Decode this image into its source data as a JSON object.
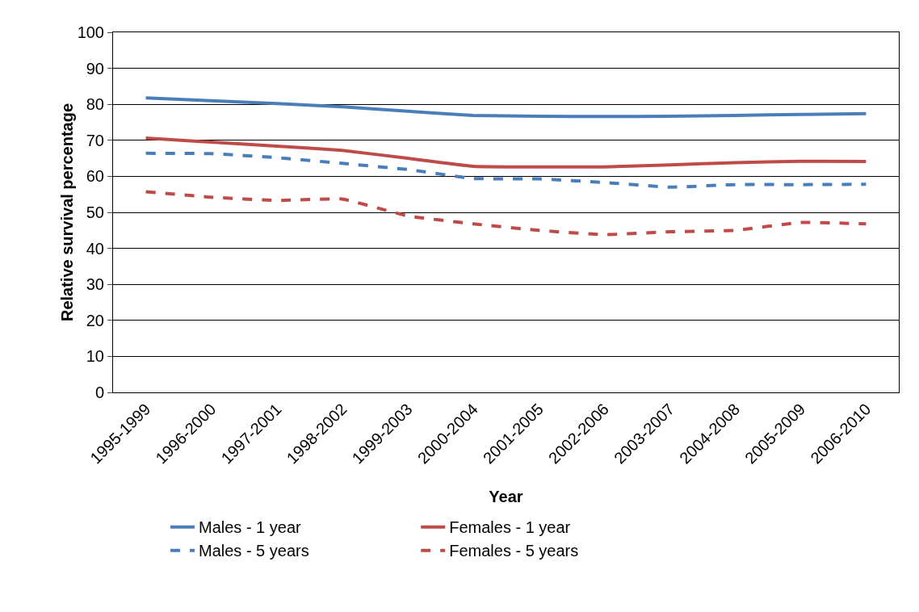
{
  "chart_data": {
    "type": "line",
    "xlabel": "Year",
    "ylabel": "Relative survival percentage",
    "categories": [
      "1995-1999",
      "1996-2000",
      "1997-2001",
      "1998-2002",
      "1999-2003",
      "2000-2004",
      "2001-2005",
      "2002-2006",
      "2003-2007",
      "2004-2008",
      "2005-2009",
      "2006-2010"
    ],
    "series": [
      {
        "name": "Males - 1 year",
        "color": "#4a7ebb",
        "line_style": "solid",
        "values": [
          81.8,
          81.0,
          80.2,
          79.3,
          78.1,
          76.9,
          76.7,
          76.6,
          76.7,
          76.9,
          77.2,
          77.4
        ]
      },
      {
        "name": "Females - 1 year",
        "color": "#be4b48",
        "line_style": "solid",
        "values": [
          70.6,
          69.5,
          68.4,
          67.2,
          65.0,
          62.8,
          62.6,
          62.6,
          63.2,
          63.8,
          64.2,
          64.1
        ]
      },
      {
        "name": "Males - 5 years",
        "color": "#4a7ebb",
        "line_style": "dashed",
        "values": [
          66.4,
          66.3,
          65.2,
          63.6,
          61.9,
          59.4,
          59.3,
          58.3,
          57.0,
          57.7,
          57.7,
          57.8
        ]
      },
      {
        "name": "Females - 5 years",
        "color": "#be4b48",
        "line_style": "dashed",
        "values": [
          55.7,
          54.2,
          53.3,
          53.7,
          49.0,
          46.8,
          45.0,
          43.8,
          44.6,
          45.0,
          47.2,
          46.8
        ]
      }
    ],
    "ylim": [
      0,
      100
    ],
    "yticks": [
      0,
      10,
      20,
      30,
      40,
      50,
      60,
      70,
      80,
      90,
      100
    ],
    "grid": "y",
    "legend": "bottom",
    "marker": "none"
  }
}
